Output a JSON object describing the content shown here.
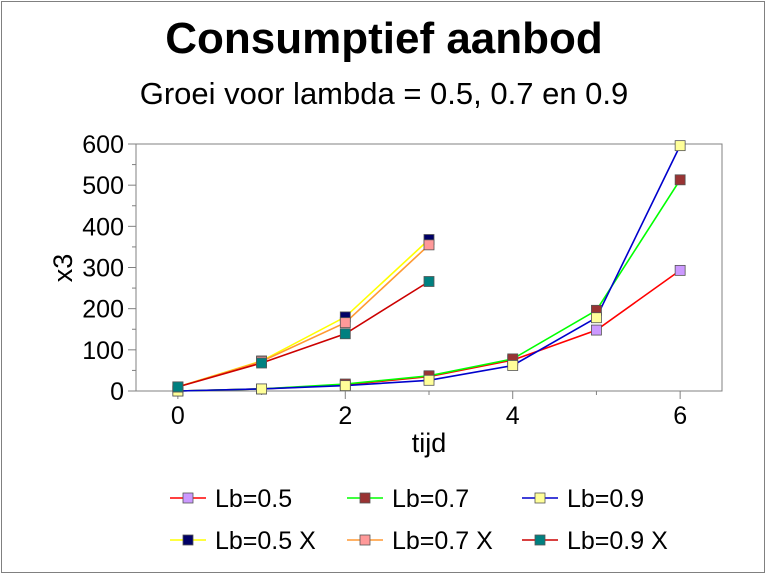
{
  "chart_data": {
    "type": "line",
    "title": "Consumptief aanbod",
    "subtitle": "Groei voor lambda = 0.5, 0.7 en 0.9",
    "xlabel": "tijd",
    "ylabel": "x3",
    "xlim": [
      -0.5,
      6.5
    ],
    "ylim": [
      0,
      600
    ],
    "x_ticks": [
      "0",
      "2",
      "4",
      "6"
    ],
    "y_ticks": [
      "0",
      "100",
      "200",
      "300",
      "400",
      "500",
      "600"
    ],
    "grid": false,
    "legend_position": "bottom",
    "series": [
      {
        "name": "Lb=0.5",
        "line_color": "#ff0000",
        "marker_color": "#cc99ff",
        "x": [
          0,
          1,
          2,
          3,
          4,
          5,
          6
        ],
        "y": [
          0,
          5,
          15,
          35,
          75,
          148,
          293
        ]
      },
      {
        "name": "Lb=0.7",
        "line_color": "#00ff00",
        "marker_color": "#993333",
        "x": [
          0,
          1,
          2,
          3,
          4,
          5,
          6
        ],
        "y": [
          0,
          5,
          17,
          37,
          78,
          196,
          513
        ]
      },
      {
        "name": "Lb=0.9",
        "line_color": "#0000cc",
        "marker_color": "#ffff99",
        "x": [
          0,
          1,
          2,
          3,
          4,
          5,
          6
        ],
        "y": [
          0,
          5,
          13,
          26,
          62,
          178,
          596
        ]
      },
      {
        "name": "Lb=0.5 X",
        "line_color": "#ffff00",
        "marker_color": "#000066",
        "x": [
          0,
          1,
          2,
          3
        ],
        "y": [
          10,
          73,
          180,
          368
        ]
      },
      {
        "name": "Lb=0.7 X",
        "line_color": "#ff9933",
        "marker_color": "#ff9999",
        "x": [
          0,
          1,
          2,
          3
        ],
        "y": [
          10,
          72,
          166,
          355
        ]
      },
      {
        "name": "Lb=0.9 X",
        "line_color": "#cc0000",
        "marker_color": "#008080",
        "x": [
          0,
          1,
          2,
          3
        ],
        "y": [
          10,
          68,
          139,
          266
        ]
      }
    ]
  }
}
